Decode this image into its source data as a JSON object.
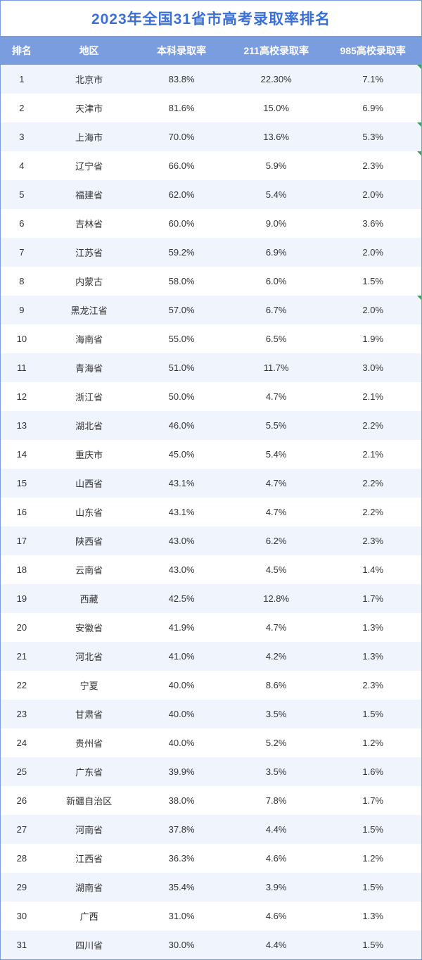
{
  "title": "2023年全国31省市高考录取率排名",
  "columns": [
    "排名",
    "地区",
    "本科录取率",
    "211高校录取率",
    "985高校录取率"
  ],
  "styling": {
    "type": "table",
    "title_color": "#3a6fd8",
    "title_fontsize": 21,
    "title_fontweight": "bold",
    "header_bg": "#7a9de0",
    "header_text_color": "#ffffff",
    "header_fontsize": 14,
    "row_odd_bg": "#f0f4fd",
    "row_even_bg": "#ffffff",
    "cell_text_color": "#333333",
    "cell_fontsize": 13,
    "border_color": "#7a9de0",
    "marker_color": "#3b9e5a",
    "column_widths": [
      "10%",
      "22%",
      "22%",
      "23%",
      "23%"
    ]
  },
  "rows": [
    {
      "rank": "1",
      "region": "北京市",
      "undergrad": "83.8%",
      "r211": "22.30%",
      "r985": "7.1%",
      "mark": true
    },
    {
      "rank": "2",
      "region": "天津市",
      "undergrad": "81.6%",
      "r211": "15.0%",
      "r985": "6.9%",
      "mark": false
    },
    {
      "rank": "3",
      "region": "上海市",
      "undergrad": "70.0%",
      "r211": "13.6%",
      "r985": "5.3%",
      "mark": true
    },
    {
      "rank": "4",
      "region": "辽宁省",
      "undergrad": "66.0%",
      "r211": "5.9%",
      "r985": "2.3%",
      "mark": true
    },
    {
      "rank": "5",
      "region": "福建省",
      "undergrad": "62.0%",
      "r211": "5.4%",
      "r985": "2.0%",
      "mark": false
    },
    {
      "rank": "6",
      "region": "吉林省",
      "undergrad": "60.0%",
      "r211": "9.0%",
      "r985": "3.6%",
      "mark": false
    },
    {
      "rank": "7",
      "region": "江苏省",
      "undergrad": "59.2%",
      "r211": "6.9%",
      "r985": "2.0%",
      "mark": false
    },
    {
      "rank": "8",
      "region": "内蒙古",
      "undergrad": "58.0%",
      "r211": "6.0%",
      "r985": "1.5%",
      "mark": false
    },
    {
      "rank": "9",
      "region": "黑龙江省",
      "undergrad": "57.0%",
      "r211": "6.7%",
      "r985": "2.0%",
      "mark": true
    },
    {
      "rank": "10",
      "region": "海南省",
      "undergrad": "55.0%",
      "r211": "6.5%",
      "r985": "1.9%",
      "mark": false
    },
    {
      "rank": "11",
      "region": "青海省",
      "undergrad": "51.0%",
      "r211": "11.7%",
      "r985": "3.0%",
      "mark": false
    },
    {
      "rank": "12",
      "region": "浙江省",
      "undergrad": "50.0%",
      "r211": "4.7%",
      "r985": "2.1%",
      "mark": false
    },
    {
      "rank": "13",
      "region": "湖北省",
      "undergrad": "46.0%",
      "r211": "5.5%",
      "r985": "2.2%",
      "mark": false
    },
    {
      "rank": "14",
      "region": "重庆市",
      "undergrad": "45.0%",
      "r211": "5.4%",
      "r985": "2.1%",
      "mark": false
    },
    {
      "rank": "15",
      "region": "山西省",
      "undergrad": "43.1%",
      "r211": "4.7%",
      "r985": "2.2%",
      "mark": false
    },
    {
      "rank": "16",
      "region": "山东省",
      "undergrad": "43.1%",
      "r211": "4.7%",
      "r985": "2.2%",
      "mark": false
    },
    {
      "rank": "17",
      "region": "陕西省",
      "undergrad": "43.0%",
      "r211": "6.2%",
      "r985": "2.3%",
      "mark": false
    },
    {
      "rank": "18",
      "region": "云南省",
      "undergrad": "43.0%",
      "r211": "4.5%",
      "r985": "1.4%",
      "mark": false
    },
    {
      "rank": "19",
      "region": "西藏",
      "undergrad": "42.5%",
      "r211": "12.8%",
      "r985": "1.7%",
      "mark": false
    },
    {
      "rank": "20",
      "region": "安徽省",
      "undergrad": "41.9%",
      "r211": "4.7%",
      "r985": "1.3%",
      "mark": false
    },
    {
      "rank": "21",
      "region": "河北省",
      "undergrad": "41.0%",
      "r211": "4.2%",
      "r985": "1.3%",
      "mark": false
    },
    {
      "rank": "22",
      "region": "宁夏",
      "undergrad": "40.0%",
      "r211": "8.6%",
      "r985": "2.3%",
      "mark": false
    },
    {
      "rank": "23",
      "region": "甘肃省",
      "undergrad": "40.0%",
      "r211": "3.5%",
      "r985": "1.5%",
      "mark": false
    },
    {
      "rank": "24",
      "region": "贵州省",
      "undergrad": "40.0%",
      "r211": "5.2%",
      "r985": "1.2%",
      "mark": false
    },
    {
      "rank": "25",
      "region": "广东省",
      "undergrad": "39.9%",
      "r211": "3.5%",
      "r985": "1.6%",
      "mark": false
    },
    {
      "rank": "26",
      "region": "新疆自治区",
      "undergrad": "38.0%",
      "r211": "7.8%",
      "r985": "1.7%",
      "mark": false
    },
    {
      "rank": "27",
      "region": "河南省",
      "undergrad": "37.8%",
      "r211": "4.4%",
      "r985": "1.5%",
      "mark": false
    },
    {
      "rank": "28",
      "region": "江西省",
      "undergrad": "36.3%",
      "r211": "4.6%",
      "r985": "1.2%",
      "mark": false
    },
    {
      "rank": "29",
      "region": "湖南省",
      "undergrad": "35.4%",
      "r211": "3.9%",
      "r985": "1.5%",
      "mark": false
    },
    {
      "rank": "30",
      "region": "广西",
      "undergrad": "31.0%",
      "r211": "4.6%",
      "r985": "1.3%",
      "mark": false
    },
    {
      "rank": "31",
      "region": "四川省",
      "undergrad": "30.0%",
      "r211": "4.4%",
      "r985": "1.5%",
      "mark": false
    }
  ]
}
